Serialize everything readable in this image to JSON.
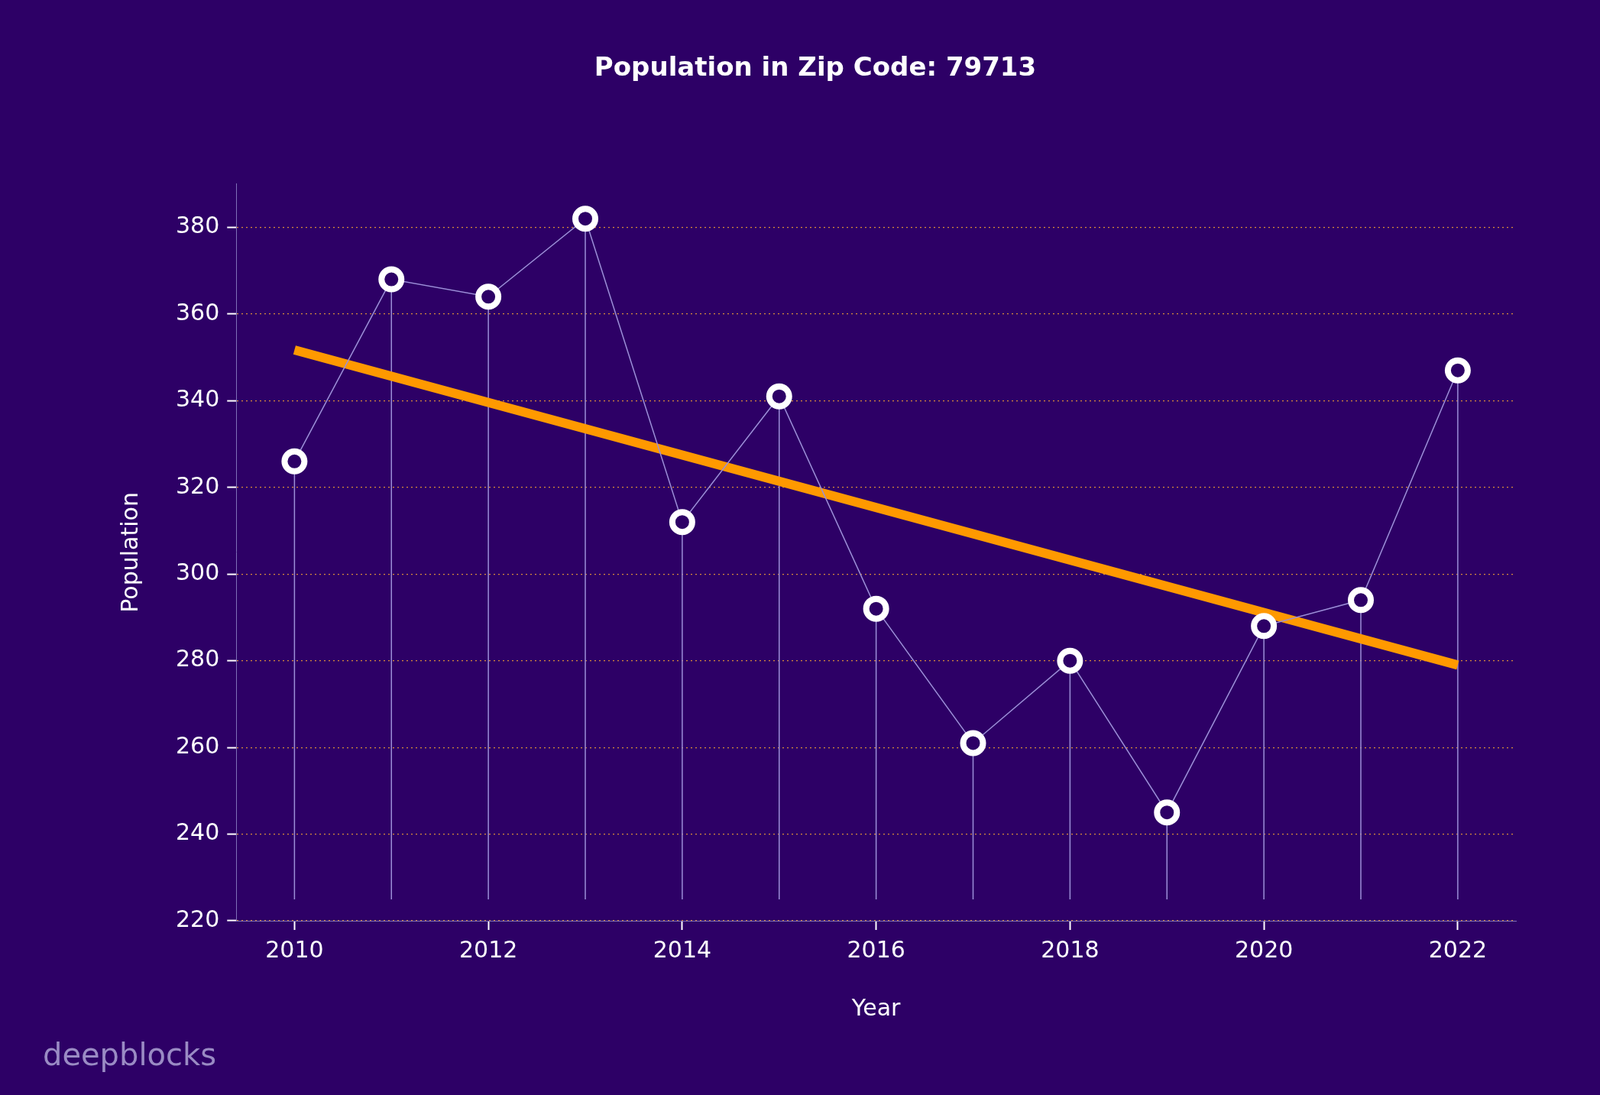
{
  "chart_data": {
    "type": "line",
    "title": "Population in Zip Code: 79713",
    "x_label": "Year",
    "y_label": "Population",
    "x": [
      2010,
      2011,
      2012,
      2013,
      2014,
      2015,
      2016,
      2017,
      2018,
      2019,
      2020,
      2021,
      2022
    ],
    "series": [
      {
        "color": "#ffffff",
        "marker": "circle",
        "line_style": "solid",
        "values": [
          326,
          368,
          364,
          382,
          312,
          341,
          292,
          261,
          280,
          245,
          288,
          294,
          347
        ]
      },
      {
        "type": "line",
        "color": "#ff9900",
        "line_style": "solid",
        "x": [
          2010,
          2022
        ],
        "values": [
          351.7,
          279.0
        ]
      }
    ],
    "xlim": [
      2009.4,
      2022.6
    ],
    "xticks": [
      2010,
      2012,
      2014,
      2016,
      2018,
      2020,
      2022
    ],
    "ylim": [
      220,
      390
    ],
    "yticks": [
      220,
      240,
      260,
      280,
      300,
      320,
      340,
      360,
      380
    ],
    "grid": true,
    "annotation": "deepblocks"
  }
}
